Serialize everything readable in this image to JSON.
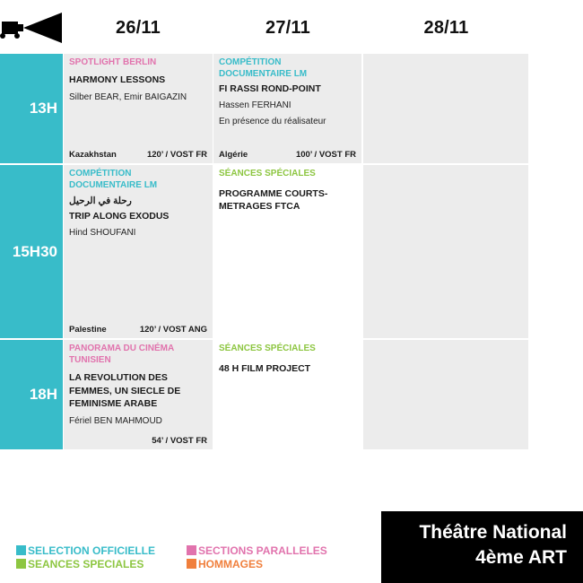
{
  "header": {
    "camera_icon": "film-camera-icon",
    "days": [
      "26/11",
      "27/11",
      "28/11"
    ]
  },
  "rows": [
    {
      "time": "13H",
      "cells": [
        {
          "section": "SPOTLIGHT BERLIN",
          "section_type": "parallel",
          "title": "HARMONY LESSONS",
          "director": "Silber BEAR, Emir BAIGAZIN",
          "country": "Kazakhstan",
          "info": "120’ / VOST FR"
        },
        {
          "section": "COMPÉTITION DOCUMENTAIRE LM",
          "section_type": "official",
          "title": "FI RASSI ROND-POINT",
          "director": "Hassen FERHANI",
          "note": "En présence du réalisateur",
          "country": "Algérie",
          "info": "100’ / VOST FR"
        }
      ]
    },
    {
      "time": "15H30",
      "cells": [
        {
          "section": "COMPÉTITION DOCUMENTAIRE LM",
          "section_type": "official",
          "arabic_title": "رحلة في الرحيل",
          "title": "TRIP ALONG EXODUS",
          "director": "Hind SHOUFANI",
          "country": "Palestine",
          "info": "120’ / VOST ANG"
        },
        {
          "section": "SÉANCES SPÉCIALES",
          "section_type": "special",
          "title": "PROGRAMME COURTS-METRAGES FTCA"
        }
      ]
    },
    {
      "time": "18H",
      "cells": [
        {
          "section": "PANORAMA DU CINÉMA TUNISIEN",
          "section_type": "parallel",
          "title": "LA REVOLUTION DES FEMMES, UN SIECLE DE FEMINISME ARABE",
          "director": "Fériel BEN MAHMOUD",
          "info": "54’ / VOST FR"
        },
        {
          "section": "SÉANCES SPÉCIALES",
          "section_type": "special",
          "title": "48 H FILM PROJECT"
        }
      ]
    }
  ],
  "legend": {
    "official": "SELECTION OFFICIELLE",
    "special": "SEANCES SPECIALES",
    "parallel": "SECTIONS PARALLELES",
    "hommage": "HOMMAGES"
  },
  "colors": {
    "official": "#38bcc9",
    "special": "#8dc641",
    "parallel": "#e173ad",
    "hommage": "#f07f3c",
    "cell_background": "#ececec"
  },
  "venue": {
    "line1": "Théâtre National",
    "line2": "4ème ART"
  }
}
